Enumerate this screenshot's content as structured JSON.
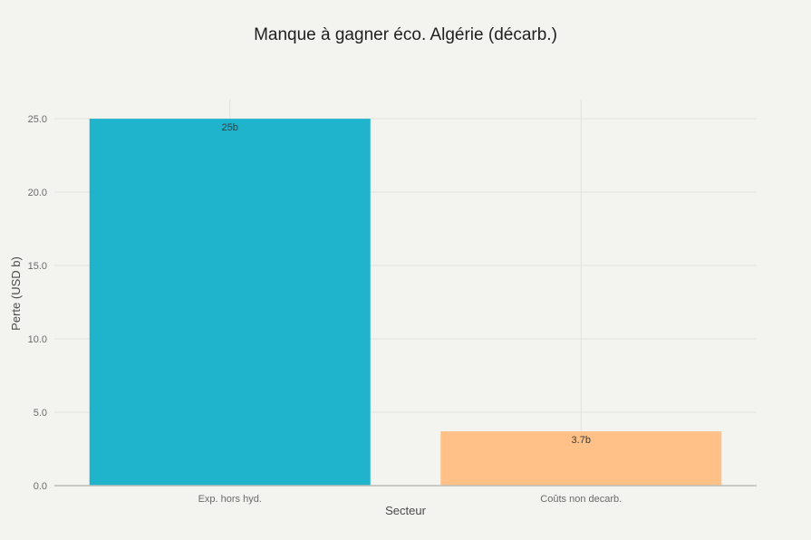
{
  "chart_data": {
    "type": "bar",
    "title": "Manque à gagner éco. Algérie (décarb.)",
    "xlabel": "Secteur",
    "ylabel": "Perte (USD b)",
    "categories": [
      "Exp. hors hyd.",
      "Coûts non decarb."
    ],
    "values": [
      25,
      3.7
    ],
    "data_labels": [
      "25b",
      "3.7b"
    ],
    "colors": [
      "#1fb4cc",
      "#ffc187"
    ],
    "ylim": [
      0,
      26.3
    ],
    "yticks": [
      0,
      5,
      10,
      15,
      20,
      25
    ],
    "ytick_labels": [
      "0.0",
      "5.0",
      "10.0",
      "15.0",
      "20.0",
      "25.0"
    ],
    "grid": true,
    "legend": "none"
  },
  "style": {
    "background": "#f3f3ef",
    "grid_color": "#e2e2dd",
    "axis_color": "#bdbdb8"
  }
}
